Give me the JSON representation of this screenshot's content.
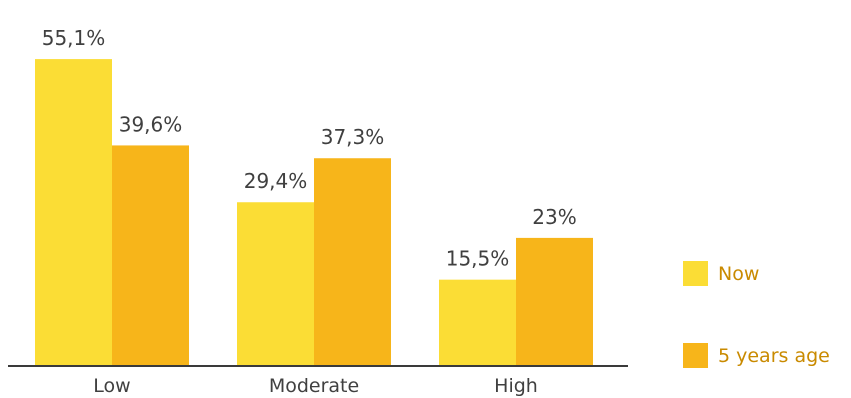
{
  "chart_data": {
    "type": "bar",
    "categories": [
      "Low",
      "Moderate",
      "High"
    ],
    "series": [
      {
        "name": "Now",
        "values": [
          55.1,
          29.4,
          15.5
        ],
        "labels": [
          "55,1%",
          "29,4%",
          "15,5%"
        ],
        "color": "#FBDD35"
      },
      {
        "name": "5 years age",
        "values": [
          39.6,
          37.3,
          23.0
        ],
        "labels": [
          "39,6%",
          "37,3%",
          "23%"
        ],
        "color": "#F7B51A"
      }
    ],
    "ylim": [
      0,
      60
    ],
    "grid": false,
    "legend_position": "right"
  }
}
